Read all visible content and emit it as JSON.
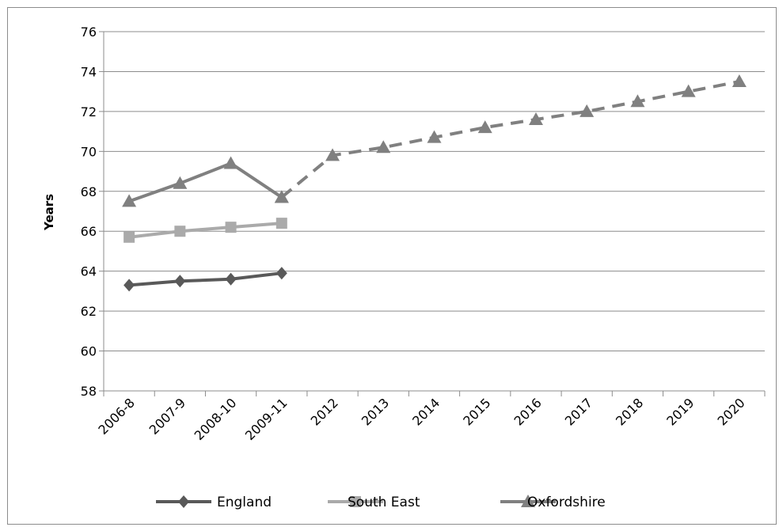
{
  "chart_data": {
    "type": "line",
    "ylabel": "Years",
    "xlabel": "",
    "ylim": [
      58,
      76
    ],
    "yticks": [
      58,
      60,
      62,
      64,
      66,
      68,
      70,
      72,
      74,
      76
    ],
    "categories": [
      "2006-8",
      "2007-9",
      "2008-10",
      "2009-11",
      "2012",
      "2013",
      "2014",
      "2015",
      "2016",
      "2017",
      "2018",
      "2019",
      "2020"
    ],
    "grid": "horizontal",
    "legend_position": "bottom",
    "series": [
      {
        "name": "England",
        "color": "#595959",
        "marker": "diamond",
        "line": "solid",
        "values": [
          63.3,
          63.5,
          63.6,
          63.9,
          null,
          null,
          null,
          null,
          null,
          null,
          null,
          null,
          null
        ]
      },
      {
        "name": "South East",
        "color": "#aaaaaa",
        "marker": "square",
        "line": "solid",
        "values": [
          65.7,
          66.0,
          66.2,
          66.4,
          null,
          null,
          null,
          null,
          null,
          null,
          null,
          null,
          null
        ]
      },
      {
        "name": "Oxfordshire",
        "color": "#808080",
        "marker": "triangle",
        "line": "solid",
        "values": [
          67.5,
          68.4,
          69.4,
          67.7,
          null,
          null,
          null,
          null,
          null,
          null,
          null,
          null,
          null
        ]
      },
      {
        "name": "Oxfordshire",
        "color": "#808080",
        "marker": "triangle",
        "line": "dashed",
        "legend": false,
        "values": [
          null,
          null,
          null,
          67.7,
          69.8,
          70.2,
          70.7,
          71.2,
          71.6,
          72.0,
          72.5,
          73.0,
          73.5
        ]
      }
    ]
  }
}
